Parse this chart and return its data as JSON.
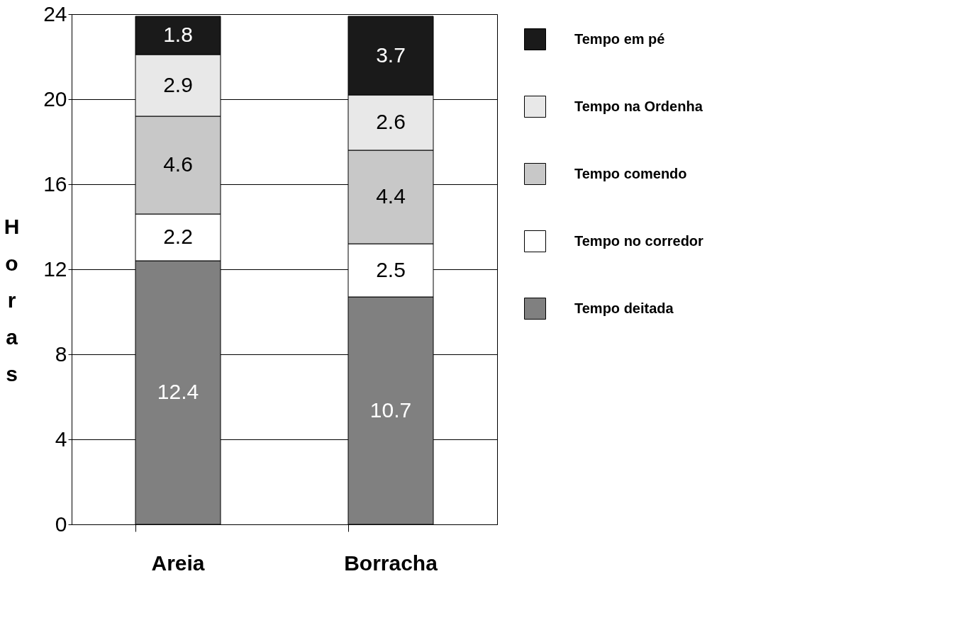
{
  "chart_data": {
    "type": "bar",
    "stacked": true,
    "ylabel": "Horas",
    "categories": [
      "Areia",
      "Borracha"
    ],
    "series": [
      {
        "name": "Tempo deitada",
        "color": "#808080",
        "values": [
          12.4,
          10.7
        ]
      },
      {
        "name": "Tempo no corredor",
        "color": "#ffffff",
        "values": [
          2.2,
          2.5
        ]
      },
      {
        "name": "Tempo comendo",
        "color": "#c8c8c8",
        "values": [
          4.6,
          4.4
        ]
      },
      {
        "name": "Tempo na Ordenha",
        "color": "#e8e8e8",
        "values": [
          2.9,
          2.6
        ]
      },
      {
        "name": "Tempo em pé",
        "color": "#1a1a1a",
        "values": [
          1.8,
          3.7
        ]
      }
    ],
    "ylim": [
      0,
      24
    ],
    "yticks": [
      0,
      4,
      8,
      12,
      16,
      20,
      24
    ],
    "grid": "y",
    "legend": "right",
    "data_labels": true
  }
}
